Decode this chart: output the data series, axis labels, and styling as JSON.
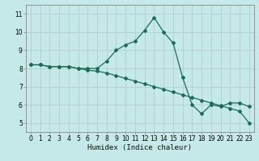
{
  "xlabel": "Humidex (Indice chaleur)",
  "background_color": "#c5e8e8",
  "grid_color": "#b0d0d0",
  "line_color": "#1a6b5a",
  "xlim": [
    -0.5,
    23.5
  ],
  "ylim": [
    4.5,
    11.5
  ],
  "xticks": [
    0,
    1,
    2,
    3,
    4,
    5,
    6,
    7,
    8,
    9,
    10,
    11,
    12,
    13,
    14,
    15,
    16,
    17,
    18,
    19,
    20,
    21,
    22,
    23
  ],
  "yticks": [
    5,
    6,
    7,
    8,
    9,
    10,
    11
  ],
  "line1_x": [
    0,
    1,
    2,
    3,
    4,
    5,
    6,
    7,
    8,
    9,
    10,
    11,
    12,
    13,
    14,
    15,
    16,
    17,
    18,
    19,
    20,
    21,
    22,
    23
  ],
  "line1_y": [
    8.2,
    8.2,
    8.1,
    8.1,
    8.1,
    8.0,
    8.0,
    8.0,
    8.4,
    9.0,
    9.3,
    9.5,
    10.1,
    10.8,
    10.0,
    9.4,
    7.5,
    6.0,
    5.5,
    6.0,
    5.9,
    6.1,
    6.1,
    5.9
  ],
  "line2_x": [
    0,
    1,
    2,
    3,
    4,
    5,
    6,
    7,
    8,
    9,
    10,
    11,
    12,
    13,
    14,
    15,
    16,
    17,
    18,
    19,
    20,
    21,
    22,
    23
  ],
  "line2_y": [
    8.2,
    8.2,
    8.1,
    8.1,
    8.1,
    8.0,
    7.9,
    7.85,
    7.75,
    7.6,
    7.45,
    7.3,
    7.15,
    7.0,
    6.85,
    6.7,
    6.55,
    6.4,
    6.25,
    6.1,
    5.95,
    5.8,
    5.65,
    5.0
  ],
  "tick_fontsize": 5.5,
  "xlabel_fontsize": 6.5,
  "spine_color": "#888888"
}
